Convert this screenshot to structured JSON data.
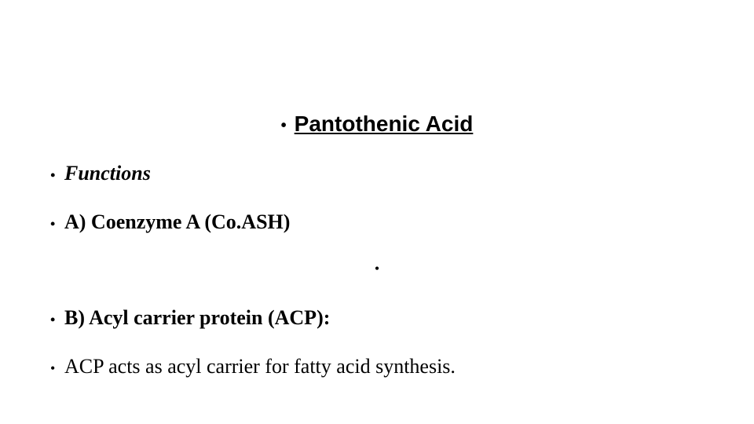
{
  "slide": {
    "background_color": "#ffffff",
    "text_color": "#000000",
    "title": {
      "text": "Pantothenic Acid",
      "font_family": "Comic Sans MS",
      "font_size_pt": 28,
      "font_weight": "bold",
      "underline": true,
      "bullet": "•"
    },
    "lines": [
      {
        "bullet": "•",
        "text": "Functions",
        "italic": true,
        "bold": true,
        "font_size_pt": 26
      },
      {
        "bullet": "•",
        "text": "A) Coenzyme A (Co.ASH)",
        "italic": false,
        "bold": true,
        "font_size_pt": 26
      },
      {
        "bullet": "•",
        "text": "",
        "lone_center": true
      },
      {
        "bullet": "•",
        "text": "B) Acyl carrier protein (ACP):",
        "italic": false,
        "bold": true,
        "font_size_pt": 26
      },
      {
        "bullet": "•",
        "text": "ACP acts as acyl carrier for fatty acid synthesis.",
        "italic": false,
        "bold": false,
        "font_size_pt": 26
      }
    ]
  }
}
